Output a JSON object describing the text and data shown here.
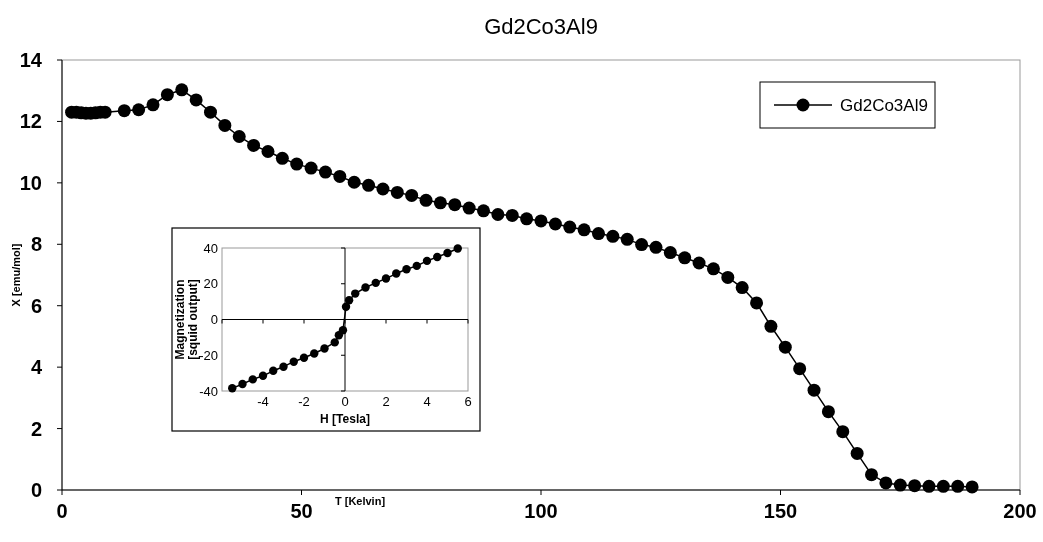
{
  "chart_data": [
    {
      "type": "line",
      "title": "Gd2Co3Al9",
      "xlabel": "T [Kelvin]",
      "ylabel": "X [emu/mol]",
      "x": [
        2,
        3,
        4,
        5,
        6,
        7,
        8,
        9,
        13,
        16,
        19,
        22,
        25,
        28,
        31,
        34,
        37,
        40,
        43,
        46,
        49,
        52,
        55,
        58,
        61,
        64,
        67,
        70,
        73,
        76,
        79,
        82,
        85,
        88,
        91,
        94,
        97,
        100,
        103,
        106,
        109,
        112,
        115,
        118,
        121,
        124,
        127,
        130,
        133,
        136,
        139,
        142,
        145,
        148,
        151,
        154,
        157,
        160,
        163,
        166,
        169,
        172,
        175,
        178,
        181,
        184,
        187,
        190
      ],
      "series": [
        {
          "name": "Gd2Co3Al9",
          "color": "#000000",
          "values": [
            12.3,
            12.3,
            12.28,
            12.27,
            12.27,
            12.28,
            12.3,
            12.3,
            12.35,
            12.38,
            12.54,
            12.87,
            13.03,
            12.7,
            12.3,
            11.87,
            11.51,
            11.22,
            11.02,
            10.8,
            10.61,
            10.48,
            10.35,
            10.21,
            10.02,
            9.92,
            9.8,
            9.69,
            9.59,
            9.43,
            9.35,
            9.29,
            9.18,
            9.09,
            8.97,
            8.94,
            8.83,
            8.76,
            8.66,
            8.56,
            8.47,
            8.35,
            8.26,
            8.16,
            7.99,
            7.9,
            7.73,
            7.56,
            7.39,
            7.2,
            6.92,
            6.59,
            6.09,
            5.33,
            4.65,
            3.95,
            3.25,
            2.55,
            1.9,
            1.19,
            0.5,
            0.23,
            0.16,
            0.14,
            0.12,
            0.12,
            0.12,
            0.1
          ]
        }
      ],
      "xlim": [
        0,
        200
      ],
      "ylim": [
        0,
        14
      ],
      "xticks": [
        0,
        50,
        100,
        150,
        200
      ],
      "yticks": [
        0,
        2,
        4,
        6,
        8,
        10,
        12,
        14
      ],
      "legend": "top right",
      "marker": "circle",
      "line_style": "solid"
    },
    {
      "type": "line",
      "xlabel": "H [Tesla]",
      "ylabel": "Magnetization [squid output]",
      "x": [
        -5.5,
        -5,
        -4.5,
        -4,
        -3.5,
        -3,
        -2.5,
        -2,
        -1.5,
        -1,
        -0.5,
        -0.3,
        -0.1,
        0.05,
        0.2,
        0.5,
        1,
        1.5,
        2,
        2.5,
        3,
        3.5,
        4,
        4.5,
        5,
        5.5
      ],
      "series": [
        {
          "color": "#000000",
          "values": [
            -38.5,
            -36.1,
            -33.5,
            -31.5,
            -28.7,
            -26.4,
            -23.6,
            -21.4,
            -19,
            -16.2,
            -12.8,
            -8.8,
            -6,
            7.1,
            10.8,
            14.5,
            17.9,
            20.5,
            22.9,
            25.7,
            28.1,
            30,
            32.8,
            35,
            37.2,
            39.7
          ]
        }
      ],
      "xlim": [
        -6,
        6
      ],
      "ylim": [
        -40,
        40
      ],
      "xticks": [
        {
          "value": -6,
          "label": null
        },
        -4,
        -2,
        0,
        2,
        4,
        6
      ],
      "yticks": [
        -40,
        -20,
        0,
        20,
        40
      ],
      "marker": "circle",
      "line_style": "solid"
    }
  ]
}
